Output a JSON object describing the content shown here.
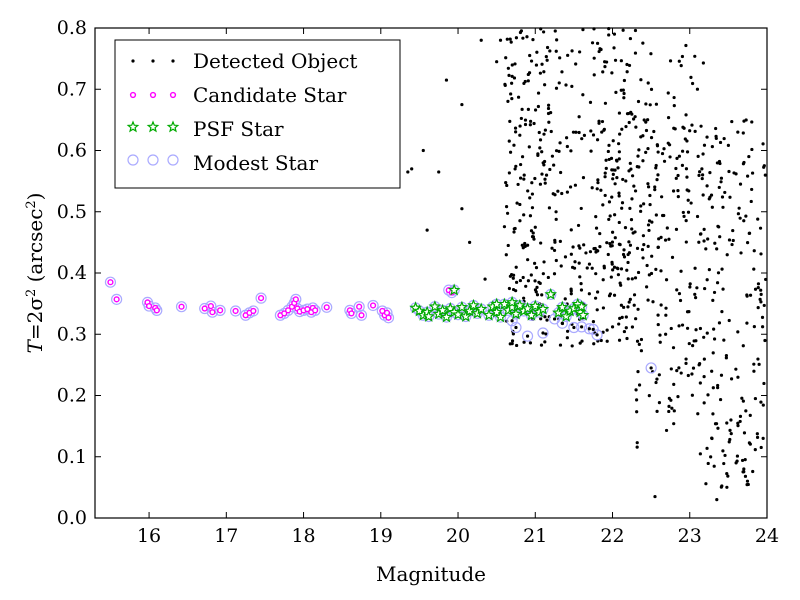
{
  "chart_data": {
    "type": "scatter",
    "title": "",
    "xlabel": "Magnitude",
    "ylabel": "T = 2σ² (arcsec²)",
    "ylabel_parts": {
      "prefix": "T",
      "mid": "=2σ",
      "sup1": "2",
      "paren_open": " (arcsec",
      "sup2": "2",
      "paren_close": ")"
    },
    "xlim": [
      15.3,
      24.0
    ],
    "ylim": [
      0.0,
      0.8
    ],
    "xticks": [
      16,
      17,
      18,
      19,
      20,
      21,
      22,
      23,
      24
    ],
    "yticks": [
      0.0,
      0.1,
      0.2,
      0.3,
      0.4,
      0.5,
      0.6,
      0.7,
      0.8
    ],
    "ytick_labels": [
      "0.0",
      "0.1",
      "0.2",
      "0.3",
      "0.4",
      "0.5",
      "0.6",
      "0.7",
      "0.8"
    ],
    "legend_placement": "top-left",
    "grid": false,
    "series": [
      {
        "name": "Detected Object",
        "marker": "dot",
        "color": "#000000"
      },
      {
        "name": "Candidate Star",
        "marker": "circle",
        "color": "#ff00ff"
      },
      {
        "name": "PSF Star",
        "marker": "star",
        "color": "#00aa00"
      },
      {
        "name": "Modest Star",
        "marker": "circle-open",
        "color": "#aaaaff"
      }
    ],
    "candidate_points": [
      [
        15.5,
        0.385
      ],
      [
        15.58,
        0.357
      ],
      [
        15.98,
        0.352
      ],
      [
        16.0,
        0.346
      ],
      [
        16.08,
        0.343
      ],
      [
        16.1,
        0.339
      ],
      [
        16.42,
        0.345
      ],
      [
        16.72,
        0.342
      ],
      [
        16.8,
        0.346
      ],
      [
        16.82,
        0.336
      ],
      [
        16.92,
        0.339
      ],
      [
        17.12,
        0.338
      ],
      [
        17.25,
        0.331
      ],
      [
        17.3,
        0.335
      ],
      [
        17.35,
        0.338
      ],
      [
        17.45,
        0.359
      ],
      [
        17.7,
        0.331
      ],
      [
        17.75,
        0.334
      ],
      [
        17.8,
        0.339
      ],
      [
        17.85,
        0.345
      ],
      [
        17.88,
        0.351
      ],
      [
        17.9,
        0.357
      ],
      [
        17.92,
        0.342
      ],
      [
        17.95,
        0.337
      ],
      [
        18.0,
        0.339
      ],
      [
        18.05,
        0.341
      ],
      [
        18.1,
        0.336
      ],
      [
        18.12,
        0.343
      ],
      [
        18.15,
        0.339
      ],
      [
        18.3,
        0.344
      ],
      [
        18.6,
        0.339
      ],
      [
        18.62,
        0.334
      ],
      [
        18.72,
        0.345
      ],
      [
        18.75,
        0.331
      ],
      [
        18.9,
        0.347
      ],
      [
        19.02,
        0.338
      ],
      [
        19.05,
        0.331
      ],
      [
        19.08,
        0.335
      ],
      [
        19.1,
        0.327
      ],
      [
        19.88,
        0.372
      ],
      [
        19.92,
        0.368
      ]
    ],
    "psf_points": [
      [
        19.45,
        0.343
      ],
      [
        19.5,
        0.338
      ],
      [
        19.55,
        0.331
      ],
      [
        19.6,
        0.336
      ],
      [
        19.62,
        0.329
      ],
      [
        19.7,
        0.345
      ],
      [
        19.75,
        0.333
      ],
      [
        19.8,
        0.339
      ],
      [
        19.85,
        0.328
      ],
      [
        19.9,
        0.342
      ],
      [
        19.95,
        0.336
      ],
      [
        20.0,
        0.332
      ],
      [
        20.05,
        0.344
      ],
      [
        20.1,
        0.329
      ],
      [
        20.15,
        0.338
      ],
      [
        20.2,
        0.347
      ],
      [
        20.25,
        0.334
      ],
      [
        20.3,
        0.341
      ],
      [
        20.4,
        0.331
      ],
      [
        20.45,
        0.345
      ],
      [
        20.5,
        0.336
      ],
      [
        20.55,
        0.328
      ],
      [
        20.6,
        0.349
      ],
      [
        20.65,
        0.339
      ],
      [
        20.7,
        0.344
      ],
      [
        20.75,
        0.333
      ],
      [
        20.8,
        0.347
      ],
      [
        20.85,
        0.338
      ],
      [
        20.9,
        0.342
      ],
      [
        20.95,
        0.331
      ],
      [
        21.0,
        0.346
      ],
      [
        21.05,
        0.336
      ],
      [
        21.1,
        0.341
      ],
      [
        21.2,
        0.365
      ],
      [
        21.3,
        0.335
      ],
      [
        21.35,
        0.344
      ],
      [
        21.4,
        0.329
      ],
      [
        21.45,
        0.338
      ],
      [
        21.5,
        0.342
      ],
      [
        21.55,
        0.349
      ],
      [
        21.58,
        0.336
      ],
      [
        21.6,
        0.345
      ],
      [
        21.62,
        0.331
      ],
      [
        19.95,
        0.372
      ],
      [
        20.7,
        0.352
      ],
      [
        20.5,
        0.349
      ]
    ],
    "modest_extra_points": [
      [
        20.7,
        0.322
      ],
      [
        20.75,
        0.311
      ],
      [
        20.9,
        0.297
      ],
      [
        21.1,
        0.302
      ],
      [
        21.25,
        0.325
      ],
      [
        21.35,
        0.318
      ],
      [
        21.5,
        0.311
      ],
      [
        21.6,
        0.312
      ],
      [
        21.7,
        0.309
      ],
      [
        21.75,
        0.308
      ],
      [
        21.8,
        0.299
      ],
      [
        22.5,
        0.245
      ]
    ],
    "detected_cloud": {
      "description_free": true,
      "n": 900,
      "x_range": [
        19.4,
        24.0
      ],
      "y_range": [
        0.03,
        0.8
      ],
      "sparse_points": [
        [
          19.35,
          0.565
        ],
        [
          19.4,
          0.57
        ],
        [
          19.55,
          0.6
        ],
        [
          19.6,
          0.47
        ],
        [
          19.75,
          0.565
        ],
        [
          19.85,
          0.715
        ],
        [
          20.05,
          0.675
        ],
        [
          20.05,
          0.505
        ],
        [
          20.15,
          0.45
        ],
        [
          20.3,
          0.78
        ],
        [
          20.35,
          0.39
        ],
        [
          20.5,
          0.745
        ],
        [
          20.55,
          0.78
        ],
        [
          20.65,
          0.445
        ],
        [
          20.8,
          0.625
        ],
        [
          20.85,
          0.495
        ],
        [
          22.55,
          0.035
        ],
        [
          23.35,
          0.03
        ],
        [
          23.6,
          0.09
        ],
        [
          23.7,
          0.08
        ],
        [
          23.95,
          0.13
        ],
        [
          23.85,
          0.195
        ],
        [
          22.8,
          0.175
        ],
        [
          23.3,
          0.17
        ]
      ]
    }
  }
}
